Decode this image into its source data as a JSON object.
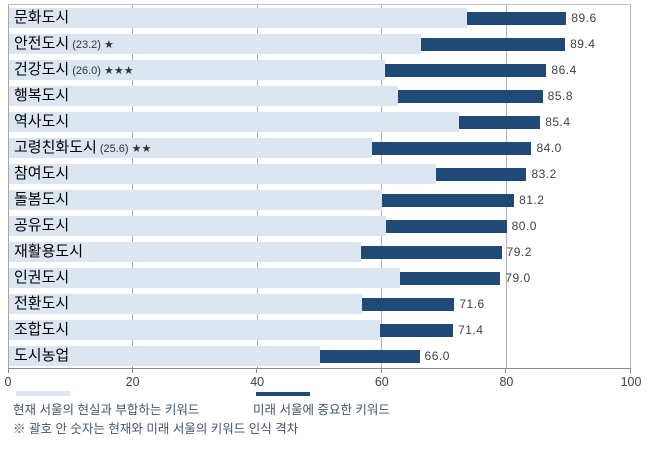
{
  "chart_data": {
    "type": "bar",
    "orientation": "horizontal",
    "title": "",
    "xlabel": "",
    "ylabel": "",
    "xlim": [
      0,
      100
    ],
    "xticks": [
      0,
      20,
      40,
      60,
      80,
      100
    ],
    "grid": "vertical",
    "legend_position": "bottom",
    "colors": {
      "current_bar": "#dce6f1",
      "future_bar": "#1f4a78",
      "gridline": "#b3b3b3"
    },
    "series_names": {
      "current": "현재 서울의 현실과 부합하는 키워드",
      "future": "미래 서울에 중요한 키워드"
    },
    "footnote": "※ 괄호 안 숫자는 현재와 미래 서울의 키워드 인식 격차",
    "rows": [
      {
        "label": "문화도시",
        "annotation": "",
        "current": 73.6,
        "future": 89.6,
        "value_label": "89.6"
      },
      {
        "label": "안전도시",
        "annotation": "(23.2) ★",
        "current": 66.2,
        "future": 89.4,
        "value_label": "89.4"
      },
      {
        "label": "건강도시",
        "annotation": "(26.0) ★★★",
        "current": 60.4,
        "future": 86.4,
        "value_label": "86.4"
      },
      {
        "label": "행복도시",
        "annotation": "",
        "current": 62.6,
        "future": 85.8,
        "value_label": "85.8"
      },
      {
        "label": "역사도시",
        "annotation": "",
        "current": 72.4,
        "future": 85.4,
        "value_label": "85.4"
      },
      {
        "label": "고령친화도시",
        "annotation": "(25.6) ★★",
        "current": 58.4,
        "future": 84.0,
        "value_label": "84.0"
      },
      {
        "label": "참여도시",
        "annotation": "",
        "current": 68.6,
        "future": 83.2,
        "value_label": "83.2"
      },
      {
        "label": "돌봄도시",
        "annotation": "",
        "current": 60.0,
        "future": 81.2,
        "value_label": "81.2"
      },
      {
        "label": "공유도시",
        "annotation": "",
        "current": 60.6,
        "future": 80.0,
        "value_label": "80.0"
      },
      {
        "label": "재활용도시",
        "annotation": "",
        "current": 56.6,
        "future": 79.2,
        "value_label": "79.2"
      },
      {
        "label": "인권도시",
        "annotation": "",
        "current": 62.8,
        "future": 79.0,
        "value_label": "79.0"
      },
      {
        "label": "전환도시",
        "annotation": "",
        "current": 56.8,
        "future": 71.6,
        "value_label": "71.6"
      },
      {
        "label": "조합도시",
        "annotation": "",
        "current": 59.6,
        "future": 71.4,
        "value_label": "71.4"
      },
      {
        "label": "도시농업",
        "annotation": "",
        "current": 50.0,
        "future": 66.0,
        "value_label": "66.0"
      }
    ]
  }
}
